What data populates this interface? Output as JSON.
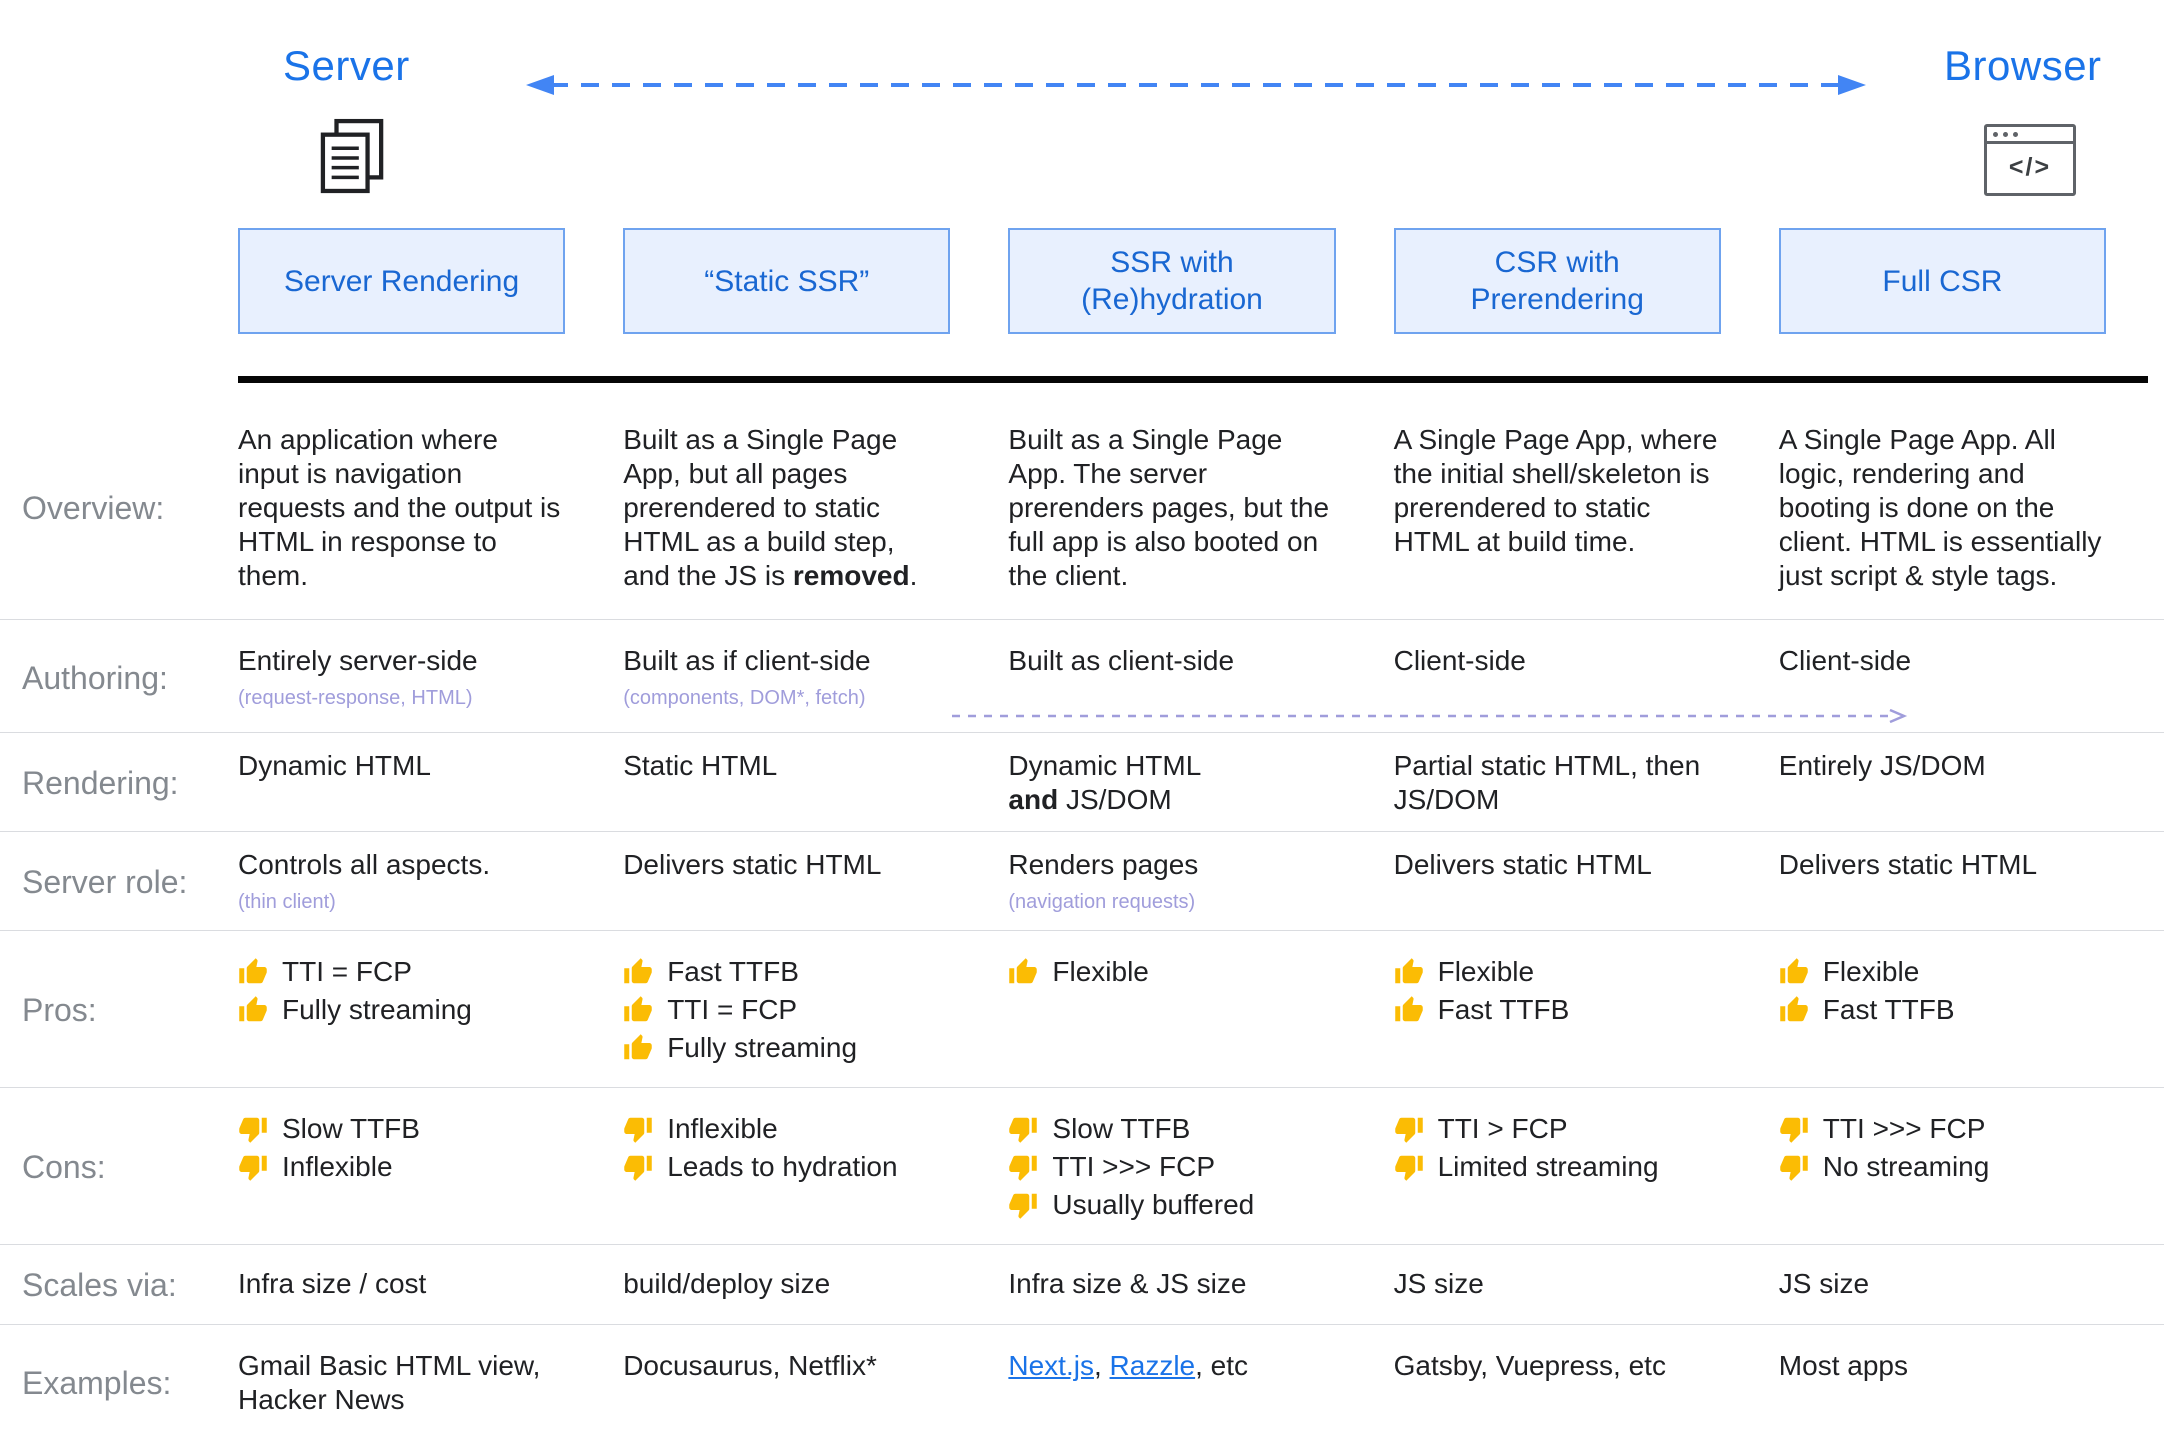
{
  "colors": {
    "accent_blue": "#1a73e8",
    "arrow_blue": "#4285F4",
    "header_bg": "#E8F0FE",
    "header_border": "#6FA3EF",
    "header_text": "#1967D2",
    "body_text": "#202124",
    "label_gray": "#84898F",
    "subtext_purple": "#A09DDB",
    "divider_gray": "#DADCE0",
    "thumb": "#FBBC04",
    "link_blue": "#1a73e8"
  },
  "icons": {
    "server": "document-pages-icon",
    "browser": "browser-window-icon",
    "spectrum_arrow": "double-headed-dashed-arrow",
    "authoring_arrow": "right-dashed-arrow",
    "pros": "thumbs-up-icon",
    "cons": "thumbs-down-icon"
  },
  "top": {
    "server_label": "Server",
    "browser_label": "Browser",
    "browser_icon_glyph": "</>"
  },
  "headers": [
    "Server Rendering",
    "“Static SSR”",
    "SSR with (Re)hydration",
    "CSR with Prerendering",
    "Full CSR"
  ],
  "row_labels": {
    "overview": "Overview:",
    "authoring": "Authoring:",
    "rendering": "Rendering:",
    "server_role": "Server role:",
    "pros": "Pros:",
    "cons": "Cons:",
    "scales": "Scales via:",
    "examples": "Examples:"
  },
  "overview": [
    [
      {
        "t": "An application where input is navigation requests and the output is HTML in response to them."
      }
    ],
    [
      {
        "t": "Built as a Single Page App, but all pages prerendered to static HTML as a build step, and the JS is "
      },
      {
        "t": "removed",
        "b": true
      },
      {
        "t": "."
      }
    ],
    [
      {
        "t": "Built as a Single Page App. The server prerenders pages, but the full app is also booted on the client."
      }
    ],
    [
      {
        "t": "A Single Page App, where the initial shell/skeleton is prerendered to static HTML at build time."
      }
    ],
    [
      {
        "t": "A Single Page App. All logic, rendering and booting is done on the client. HTML is essentially just script & style tags."
      }
    ]
  ],
  "authoring": [
    [
      {
        "t": "Entirely server-side",
        "br": true
      },
      {
        "t": "(request-response, HTML)",
        "cls": "sub"
      }
    ],
    [
      {
        "t": "Built as if client-side",
        "br": true
      },
      {
        "t": "(components, DOM*, fetch)",
        "cls": "sub"
      }
    ],
    [
      {
        "t": "Built as client-side"
      }
    ],
    [
      {
        "t": "Client-side"
      }
    ],
    [
      {
        "t": "Client-side"
      }
    ]
  ],
  "rendering": [
    [
      {
        "t": "Dynamic HTML"
      }
    ],
    [
      {
        "t": "Static HTML"
      }
    ],
    [
      {
        "t": "Dynamic HTML",
        "br": true
      },
      {
        "t": "and",
        "b": true
      },
      {
        "t": " JS/DOM"
      }
    ],
    [
      {
        "t": "Partial static HTML, then JS/DOM"
      }
    ],
    [
      {
        "t": "Entirely JS/DOM"
      }
    ]
  ],
  "server_role": [
    [
      {
        "t": "Controls all aspects.",
        "br": true
      },
      {
        "t": "(thin client)",
        "cls": "sub"
      }
    ],
    [
      {
        "t": "Delivers static HTML"
      }
    ],
    [
      {
        "t": "Renders pages",
        "br": true
      },
      {
        "t": "(navigation requests)",
        "cls": "sub"
      }
    ],
    [
      {
        "t": "Delivers static HTML"
      }
    ],
    [
      {
        "t": "Delivers static HTML"
      }
    ]
  ],
  "pros": [
    [
      "TTI = FCP",
      "Fully streaming"
    ],
    [
      "Fast TTFB",
      "TTI = FCP",
      "Fully streaming"
    ],
    [
      "Flexible"
    ],
    [
      "Flexible",
      "Fast TTFB"
    ],
    [
      "Flexible",
      "Fast TTFB"
    ]
  ],
  "cons": [
    [
      "Slow TTFB",
      "Inflexible"
    ],
    [
      "Inflexible",
      "Leads to hydration"
    ],
    [
      "Slow TTFB",
      "TTI >>> FCP",
      "Usually buffered"
    ],
    [
      "TTI > FCP",
      "Limited streaming"
    ],
    [
      "TTI >>> FCP",
      "No streaming"
    ]
  ],
  "scales": [
    "Infra size / cost",
    "build/deploy size",
    "Infra size & JS size",
    "JS size",
    "JS size"
  ],
  "examples": [
    [
      {
        "t": "Gmail Basic HTML view, Hacker News"
      }
    ],
    [
      {
        "t": "Docusaurus, Netflix*"
      }
    ],
    [
      {
        "t": "Next.js",
        "link": true
      },
      {
        "t": ", "
      },
      {
        "t": "Razzle",
        "link": true
      },
      {
        "t": ", etc"
      }
    ],
    [
      {
        "t": "Gatsby, Vuepress, etc"
      }
    ],
    [
      {
        "t": "Most apps"
      }
    ]
  ]
}
